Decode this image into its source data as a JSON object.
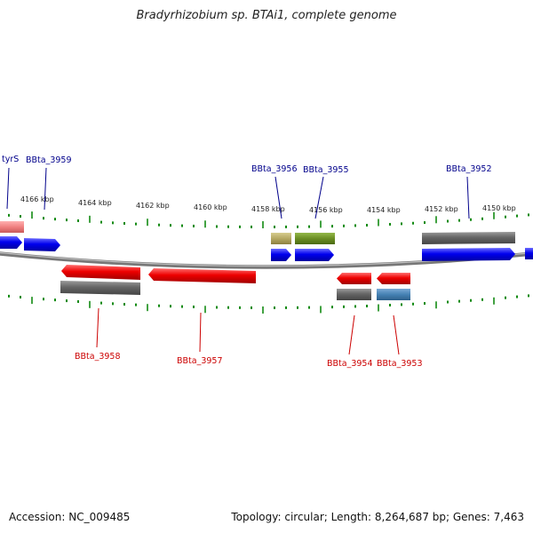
{
  "title": "Bradyrhizobium sp. BTAi1, complete genome",
  "footer": {
    "accession": "Accession: NC_009485",
    "stats": "Topology: circular; Length: 8,264,687 bp; Genes: 7,463"
  },
  "colors": {
    "forward_cds": "#0000ee",
    "reverse_cds": "#ee0000",
    "trna": "#f08080",
    "feature_gray": "#666666",
    "feature_khaki": "#b5a862",
    "feature_olive": "#6b8e23",
    "feature_steelblue": "#4682b4",
    "tick": "#138a13",
    "backbone": "#777777",
    "label_forward": "#00008b",
    "label_reverse": "#cc0000"
  },
  "kbp_labels": [
    "4166 kbp",
    "4164 kbp",
    "4162 kbp",
    "4160 kbp",
    "4158 kbp",
    "4156 kbp",
    "4154 kbp",
    "4152 kbp",
    "4150 kbp"
  ],
  "gene_labels": {
    "tyrS": "tyrS",
    "bbta_3959": "BBta_3959",
    "bbta_3956": "BBta_3956",
    "bbta_3955": "BBta_3955",
    "bbta_3952": "BBta_3952",
    "bbta_3958": "BBta_3958",
    "bbta_3957": "BBta_3957",
    "bbta_3954": "BBta_3954",
    "bbta_3953": "BBta_3953"
  }
}
